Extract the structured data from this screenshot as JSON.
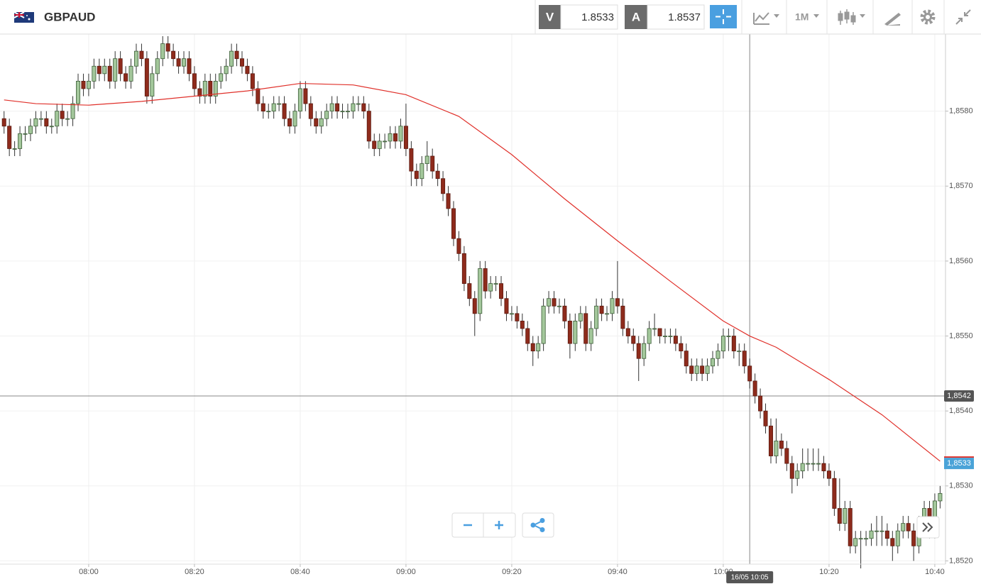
{
  "header": {
    "symbol": "GBPAUD",
    "bid_label": "V",
    "bid": 1.8533,
    "ask_label": "A",
    "ask": 1.8537,
    "timeframe": "1M"
  },
  "chart_data": {
    "type": "candlestick",
    "x": [
      "07:44",
      "07:45",
      "07:46",
      "07:47",
      "07:48",
      "07:49",
      "07:50",
      "07:51",
      "07:52",
      "07:53",
      "07:54",
      "07:55",
      "07:56",
      "07:57",
      "07:58",
      "07:59",
      "08:00",
      "08:01",
      "08:02",
      "08:03",
      "08:04",
      "08:05",
      "08:06",
      "08:07",
      "08:08",
      "08:09",
      "08:10",
      "08:11",
      "08:12",
      "08:13",
      "08:14",
      "08:15",
      "08:16",
      "08:17",
      "08:18",
      "08:19",
      "08:20",
      "08:21",
      "08:22",
      "08:23",
      "08:24",
      "08:25",
      "08:26",
      "08:27",
      "08:28",
      "08:29",
      "08:30",
      "08:31",
      "08:32",
      "08:33",
      "08:34",
      "08:35",
      "08:36",
      "08:37",
      "08:38",
      "08:39",
      "08:40",
      "08:41",
      "08:42",
      "08:43",
      "08:44",
      "08:45",
      "08:46",
      "08:47",
      "08:48",
      "08:49",
      "08:50",
      "08:51",
      "08:52",
      "08:53",
      "08:54",
      "08:55",
      "08:56",
      "08:57",
      "08:58",
      "08:59",
      "09:00",
      "09:01",
      "09:02",
      "09:03",
      "09:04",
      "09:05",
      "09:06",
      "09:07",
      "09:08",
      "09:09",
      "09:10",
      "09:11",
      "09:12",
      "09:13",
      "09:14",
      "09:15",
      "09:16",
      "09:17",
      "09:18",
      "09:19",
      "09:20",
      "09:21",
      "09:22",
      "09:23",
      "09:24",
      "09:25",
      "09:26",
      "09:27",
      "09:28",
      "09:29",
      "09:30",
      "09:31",
      "09:32",
      "09:33",
      "09:34",
      "09:35",
      "09:36",
      "09:37",
      "09:38",
      "09:39",
      "09:40",
      "09:41",
      "09:42",
      "09:43",
      "09:44",
      "09:45",
      "09:46",
      "09:47",
      "09:48",
      "09:49",
      "09:50",
      "09:51",
      "09:52",
      "09:53",
      "09:54",
      "09:55",
      "09:56",
      "09:57",
      "09:58",
      "09:59",
      "10:00",
      "10:01",
      "10:02",
      "10:03",
      "10:04",
      "10:05",
      "10:06",
      "10:07",
      "10:08",
      "10:09",
      "10:10",
      "10:11",
      "10:12",
      "10:13",
      "10:14",
      "10:15",
      "10:16",
      "10:17",
      "10:18",
      "10:19",
      "10:20",
      "10:21",
      "10:22",
      "10:23",
      "10:24",
      "10:25",
      "10:26",
      "10:27",
      "10:28",
      "10:29",
      "10:30",
      "10:31",
      "10:32",
      "10:33",
      "10:34",
      "10:35",
      "10:36",
      "10:37",
      "10:38",
      "10:39",
      "10:40",
      "10:41"
    ],
    "open": [
      1.8579,
      1.8578,
      1.8575,
      1.8575,
      1.8577,
      1.8577,
      1.8578,
      1.8579,
      1.8579,
      1.8578,
      1.8578,
      1.858,
      1.8579,
      1.8579,
      1.8581,
      1.8584,
      1.8583,
      1.8584,
      1.8586,
      1.8585,
      1.8586,
      1.8584,
      1.8587,
      1.8585,
      1.8584,
      1.8586,
      1.8588,
      1.8587,
      1.8582,
      1.8585,
      1.8587,
      1.8589,
      1.8588,
      1.8587,
      1.8586,
      1.8587,
      1.8585,
      1.8583,
      1.8582,
      1.8584,
      1.8582,
      1.8584,
      1.8585,
      1.8586,
      1.8588,
      1.8587,
      1.8586,
      1.8585,
      1.8583,
      1.8581,
      1.858,
      1.858,
      1.8581,
      1.8581,
      1.8579,
      1.8578,
      1.858,
      1.8583,
      1.8581,
      1.8579,
      1.8578,
      1.8579,
      1.858,
      1.8581,
      1.858,
      1.858,
      1.858,
      1.8581,
      1.8581,
      1.858,
      1.8576,
      1.8575,
      1.8576,
      1.8576,
      1.8577,
      1.8576,
      1.8578,
      1.8575,
      1.8572,
      1.8571,
      1.8573,
      1.8574,
      1.8572,
      1.8571,
      1.8569,
      1.8567,
      1.8563,
      1.8561,
      1.8557,
      1.8555,
      1.8553,
      1.8559,
      1.8556,
      1.8557,
      1.8557,
      1.8555,
      1.8553,
      1.8553,
      1.8552,
      1.8551,
      1.8549,
      1.8548,
      1.8549,
      1.8554,
      1.8555,
      1.8554,
      1.8554,
      1.8552,
      1.8549,
      1.8552,
      1.8553,
      1.8549,
      1.8551,
      1.8554,
      1.8553,
      1.8553,
      1.8555,
      1.8554,
      1.8551,
      1.855,
      1.8549,
      1.8547,
      1.8549,
      1.8551,
      1.8551,
      1.855,
      1.855,
      1.855,
      1.8549,
      1.8548,
      1.8546,
      1.8545,
      1.8546,
      1.8545,
      1.8546,
      1.8547,
      1.8548,
      1.855,
      1.855,
      1.8548,
      1.8548,
      1.8546,
      1.8544,
      1.8542,
      1.854,
      1.8538,
      1.8534,
      1.8536,
      1.8535,
      1.8533,
      1.8531,
      1.8532,
      1.8533,
      1.8533,
      1.8533,
      1.8533,
      1.8532,
      1.8531,
      1.8527,
      1.8525,
      1.8527,
      1.8522,
      1.8523,
      1.8523,
      1.8523,
      1.8524,
      1.8524,
      1.8524,
      1.8523,
      1.8522,
      1.8524,
      1.8525,
      1.8524,
      1.8522,
      1.8525,
      1.8527,
      1.8524,
      1.8528
    ],
    "high": [
      1.858,
      1.8579,
      1.8576,
      1.8578,
      1.8578,
      1.8579,
      1.858,
      1.858,
      1.858,
      1.8579,
      1.8581,
      1.8581,
      1.858,
      1.8582,
      1.8585,
      1.8585,
      1.8585,
      1.8587,
      1.8587,
      1.8587,
      1.8587,
      1.8588,
      1.8588,
      1.8586,
      1.8587,
      1.8589,
      1.8589,
      1.8588,
      1.8586,
      1.8588,
      1.859,
      1.859,
      1.8589,
      1.8588,
      1.8588,
      1.8588,
      1.8586,
      1.8584,
      1.8585,
      1.8585,
      1.8585,
      1.8586,
      1.8587,
      1.8589,
      1.8589,
      1.8588,
      1.8587,
      1.8586,
      1.8584,
      1.8582,
      1.8581,
      1.8582,
      1.8582,
      1.8582,
      1.858,
      1.8581,
      1.8584,
      1.8584,
      1.8582,
      1.858,
      1.858,
      1.8581,
      1.8582,
      1.8582,
      1.8581,
      1.8581,
      1.8582,
      1.8582,
      1.8582,
      1.8581,
      1.8577,
      1.8577,
      1.8577,
      1.8578,
      1.8578,
      1.8579,
      1.8581,
      1.8576,
      1.8573,
      1.8574,
      1.8576,
      1.8575,
      1.8573,
      1.8572,
      1.857,
      1.8568,
      1.8564,
      1.8562,
      1.8558,
      1.8556,
      1.856,
      1.856,
      1.8558,
      1.8558,
      1.8558,
      1.8556,
      1.8554,
      1.8554,
      1.8553,
      1.8552,
      1.855,
      1.855,
      1.8555,
      1.8556,
      1.8556,
      1.8555,
      1.8555,
      1.8553,
      1.8553,
      1.8554,
      1.8554,
      1.8552,
      1.8555,
      1.8555,
      1.8554,
      1.8556,
      1.856,
      1.8555,
      1.8552,
      1.8551,
      1.855,
      1.855,
      1.8552,
      1.8553,
      1.8551,
      1.8551,
      1.8551,
      1.8551,
      1.855,
      1.8549,
      1.8547,
      1.8547,
      1.8547,
      1.8547,
      1.8548,
      1.8549,
      1.8551,
      1.8551,
      1.8551,
      1.8549,
      1.8549,
      1.8547,
      1.8545,
      1.8543,
      1.8541,
      1.8539,
      1.8539,
      1.8537,
      1.8536,
      1.8534,
      1.8533,
      1.8535,
      1.8535,
      1.8535,
      1.8535,
      1.8534,
      1.8533,
      1.8532,
      1.8531,
      1.8528,
      1.8528,
      1.8524,
      1.8524,
      1.8524,
      1.8525,
      1.8526,
      1.8526,
      1.8525,
      1.8524,
      1.8525,
      1.8526,
      1.8526,
      1.8525,
      1.8526,
      1.8528,
      1.8528,
      1.8529,
      1.853
    ],
    "low": [
      1.8577,
      1.8574,
      1.8574,
      1.8574,
      1.8576,
      1.8576,
      1.8577,
      1.8578,
      1.8577,
      1.8577,
      1.8577,
      1.8578,
      1.8578,
      1.8578,
      1.858,
      1.8582,
      1.8582,
      1.8583,
      1.8584,
      1.8584,
      1.8583,
      1.8583,
      1.8584,
      1.8583,
      1.8583,
      1.8585,
      1.8586,
      1.8581,
      1.8581,
      1.8584,
      1.8586,
      1.8587,
      1.8586,
      1.8585,
      1.8585,
      1.8584,
      1.8582,
      1.8581,
      1.8581,
      1.8581,
      1.8581,
      1.8583,
      1.8584,
      1.8585,
      1.8586,
      1.8585,
      1.8584,
      1.8582,
      1.858,
      1.8579,
      1.8579,
      1.8579,
      1.858,
      1.8578,
      1.8577,
      1.8577,
      1.8579,
      1.858,
      1.8578,
      1.8577,
      1.8577,
      1.8578,
      1.8579,
      1.8579,
      1.8579,
      1.8579,
      1.8579,
      1.858,
      1.8579,
      1.8575,
      1.8574,
      1.8574,
      1.8575,
      1.8575,
      1.8575,
      1.8575,
      1.8574,
      1.857,
      1.857,
      1.857,
      1.8572,
      1.8571,
      1.857,
      1.8568,
      1.8566,
      1.8562,
      1.856,
      1.8556,
      1.8554,
      1.855,
      1.8552,
      1.8555,
      1.8555,
      1.8556,
      1.8554,
      1.8552,
      1.8552,
      1.8551,
      1.855,
      1.8548,
      1.8546,
      1.8547,
      1.8548,
      1.8553,
      1.8553,
      1.8553,
      1.8551,
      1.8547,
      1.8548,
      1.8551,
      1.8548,
      1.8548,
      1.855,
      1.8552,
      1.8552,
      1.8552,
      1.8553,
      1.855,
      1.8549,
      1.8548,
      1.8544,
      1.8546,
      1.8548,
      1.855,
      1.8549,
      1.8549,
      1.8549,
      1.8548,
      1.8547,
      1.8545,
      1.8544,
      1.8544,
      1.8544,
      1.8544,
      1.8545,
      1.8546,
      1.8547,
      1.8548,
      1.8547,
      1.8546,
      1.8545,
      1.8543,
      1.8541,
      1.8539,
      1.8537,
      1.8533,
      1.8533,
      1.8534,
      1.8532,
      1.8529,
      1.853,
      1.8531,
      1.8532,
      1.8532,
      1.8532,
      1.8531,
      1.853,
      1.8526,
      1.8524,
      1.8524,
      1.8521,
      1.8521,
      1.8519,
      1.8522,
      1.8522,
      1.8522,
      1.8522,
      1.8522,
      1.852,
      1.8521,
      1.8523,
      1.8523,
      1.852,
      1.8521,
      1.8524,
      1.8523,
      1.8523,
      1.8527
    ],
    "close": [
      1.8578,
      1.8575,
      1.8575,
      1.8577,
      1.8577,
      1.8578,
      1.8579,
      1.8579,
      1.8578,
      1.8578,
      1.858,
      1.8579,
      1.8579,
      1.8581,
      1.8584,
      1.8583,
      1.8584,
      1.8586,
      1.8585,
      1.8586,
      1.8584,
      1.8587,
      1.8585,
      1.8584,
      1.8586,
      1.8588,
      1.8587,
      1.8582,
      1.8585,
      1.8587,
      1.8589,
      1.8588,
      1.8587,
      1.8586,
      1.8587,
      1.8585,
      1.8583,
      1.8582,
      1.8584,
      1.8582,
      1.8584,
      1.8585,
      1.8586,
      1.8588,
      1.8587,
      1.8586,
      1.8585,
      1.8583,
      1.8581,
      1.858,
      1.858,
      1.8581,
      1.8581,
      1.8579,
      1.8578,
      1.858,
      1.8583,
      1.8581,
      1.8579,
      1.8578,
      1.8579,
      1.858,
      1.8581,
      1.858,
      1.858,
      1.858,
      1.8581,
      1.8581,
      1.858,
      1.8576,
      1.8575,
      1.8576,
      1.8576,
      1.8577,
      1.8576,
      1.8578,
      1.8575,
      1.8572,
      1.8571,
      1.8573,
      1.8574,
      1.8572,
      1.8571,
      1.8569,
      1.8567,
      1.8563,
      1.8561,
      1.8557,
      1.8555,
      1.8553,
      1.8559,
      1.8556,
      1.8557,
      1.8557,
      1.8555,
      1.8553,
      1.8553,
      1.8552,
      1.8551,
      1.8549,
      1.8548,
      1.8549,
      1.8554,
      1.8555,
      1.8554,
      1.8554,
      1.8552,
      1.8549,
      1.8552,
      1.8553,
      1.8549,
      1.8551,
      1.8554,
      1.8553,
      1.8553,
      1.8555,
      1.8554,
      1.8551,
      1.855,
      1.8549,
      1.8547,
      1.8549,
      1.8551,
      1.8551,
      1.855,
      1.855,
      1.855,
      1.8549,
      1.8548,
      1.8546,
      1.8545,
      1.8546,
      1.8545,
      1.8546,
      1.8547,
      1.8548,
      1.855,
      1.855,
      1.8548,
      1.8548,
      1.8546,
      1.8544,
      1.8542,
      1.854,
      1.8538,
      1.8534,
      1.8536,
      1.8535,
      1.8533,
      1.8531,
      1.8532,
      1.8533,
      1.8533,
      1.8533,
      1.8533,
      1.8532,
      1.8531,
      1.8527,
      1.8525,
      1.8527,
      1.8522,
      1.8523,
      1.8523,
      1.8523,
      1.8524,
      1.8524,
      1.8524,
      1.8523,
      1.8522,
      1.8524,
      1.8525,
      1.8524,
      1.8522,
      1.8525,
      1.8527,
      1.8524,
      1.8528,
      1.8529
    ],
    "up_color": "#a3c79b",
    "down_color": "#8e2b1c",
    "ylim": [
      1.8519,
      1.859
    ],
    "yticks": [
      {
        "value": 1.852,
        "label": "1,8520"
      },
      {
        "value": 1.853,
        "label": "1,8530"
      },
      {
        "value": 1.854,
        "label": "1,8540"
      },
      {
        "value": 1.855,
        "label": "1,8550"
      },
      {
        "value": 1.856,
        "label": "1,8560"
      },
      {
        "value": 1.857,
        "label": "1,8570"
      },
      {
        "value": 1.858,
        "label": "1,8580"
      }
    ],
    "xticks": [
      "08:00",
      "08:20",
      "08:40",
      "09:00",
      "09:20",
      "09:40",
      "10:00",
      "10:20",
      "10:40"
    ],
    "grid": true,
    "overlays": [
      {
        "type": "line",
        "color": "#e0302a",
        "x": [
          "07:44",
          "07:50",
          "08:00",
          "08:10",
          "08:20",
          "08:30",
          "08:40",
          "08:50",
          "09:00",
          "09:10",
          "09:20",
          "09:30",
          "09:40",
          "09:50",
          "10:00",
          "10:05",
          "10:10",
          "10:20",
          "10:30",
          "10:41"
        ],
        "values": [
          1.85815,
          1.8581,
          1.85808,
          1.85813,
          1.8582,
          1.85827,
          1.85837,
          1.85835,
          1.85822,
          1.85793,
          1.85742,
          1.85683,
          1.85627,
          1.85573,
          1.8552,
          1.855,
          1.85485,
          1.85442,
          1.85395,
          1.85333
        ]
      }
    ],
    "crosshair": {
      "value": 1.8542,
      "label": "1,8542",
      "time_label": "16/05 10:05"
    },
    "price_marker": {
      "value": 1.8533,
      "label": "1,8533",
      "color": "#4aa3d8"
    }
  }
}
